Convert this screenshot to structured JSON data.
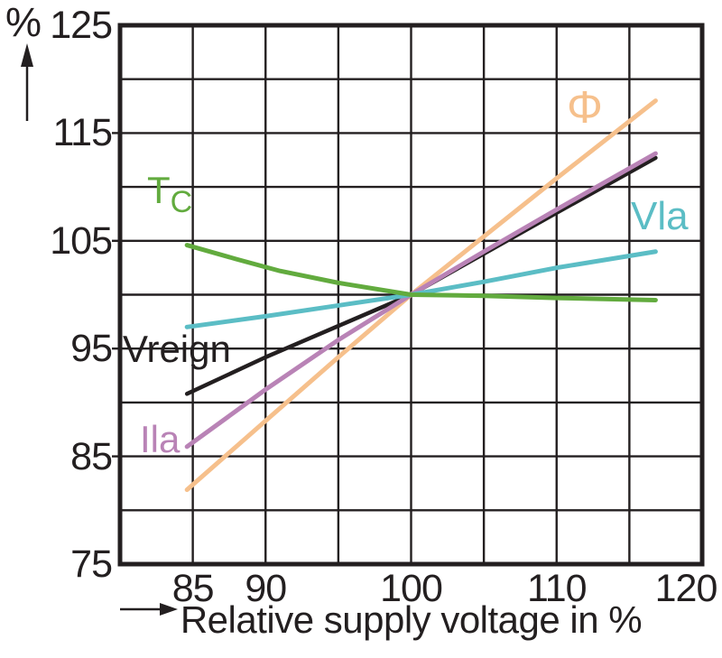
{
  "figure": {
    "background": "#ffffff",
    "axis_color": "#231F20"
  },
  "y_axis": {
    "unit_label": "%",
    "tick_labels": [
      "125",
      "115",
      "105",
      "95",
      "85",
      "75"
    ],
    "tick_values": [
      125,
      115,
      105,
      95,
      85,
      75
    ],
    "direction_arrow": "up"
  },
  "x_axis": {
    "title": "Relative supply voltage in %",
    "tick_labels": [
      "85",
      "90",
      "100",
      "110",
      "120"
    ],
    "tick_values": [
      85,
      90,
      100,
      110,
      120
    ],
    "direction_arrow": "right"
  },
  "chart_data": {
    "type": "line",
    "title": "",
    "xlabel": "Relative supply voltage in %",
    "ylabel": "%",
    "xlim": [
      80,
      120
    ],
    "ylim": [
      75,
      125
    ],
    "grid": true,
    "grid_step": 5,
    "legend_position": "inline-labels",
    "series": [
      {
        "id": "phi",
        "label": "Φ",
        "label_sub": "",
        "color": "#F6C08C",
        "points": [
          [
            84.6,
            81.9
          ],
          [
            90,
            88.3
          ],
          [
            95,
            94.2
          ],
          [
            100,
            100
          ],
          [
            105,
            105.4
          ],
          [
            110,
            110.8
          ],
          [
            116.8,
            118.0
          ]
        ]
      },
      {
        "id": "vreign",
        "label": "Vreign",
        "label_sub": "",
        "color": "#231F20",
        "points": [
          [
            84.6,
            90.8
          ],
          [
            90,
            94.2
          ],
          [
            95,
            97.1
          ],
          [
            100,
            100
          ],
          [
            105,
            103.8
          ],
          [
            110,
            107.6
          ],
          [
            116.8,
            112.7
          ]
        ]
      },
      {
        "id": "ila",
        "label": "Ila",
        "label_sub": "",
        "color": "#B983B6",
        "points": [
          [
            84.6,
            85.9
          ],
          [
            90,
            91.2
          ],
          [
            95,
            95.8
          ],
          [
            100,
            100
          ],
          [
            105,
            104.0
          ],
          [
            110,
            107.9
          ],
          [
            116.8,
            113.1
          ]
        ]
      },
      {
        "id": "vla",
        "label": "Vla",
        "label_sub": "",
        "color": "#5BBDC5",
        "points": [
          [
            84.6,
            97.0
          ],
          [
            90,
            98.0
          ],
          [
            95,
            99.0
          ],
          [
            100,
            100
          ],
          [
            105,
            101.2
          ],
          [
            110,
            102.5
          ],
          [
            116.8,
            104.0
          ]
        ]
      },
      {
        "id": "tc",
        "label": "T",
        "label_sub": "C",
        "color": "#62AB3E",
        "points": [
          [
            84.6,
            104.6
          ],
          [
            88,
            103.3
          ],
          [
            91,
            102.2
          ],
          [
            95,
            101.1
          ],
          [
            100,
            100
          ],
          [
            105,
            99.9
          ],
          [
            110,
            99.7
          ],
          [
            116.8,
            99.5
          ]
        ]
      }
    ]
  }
}
